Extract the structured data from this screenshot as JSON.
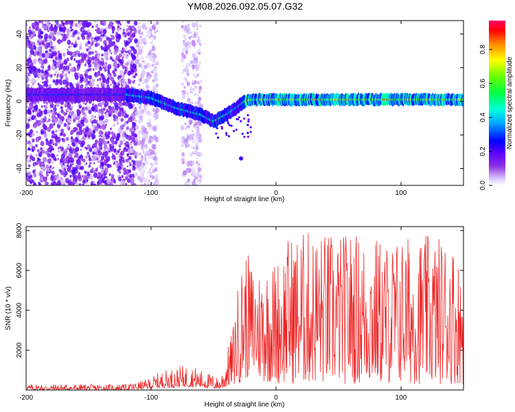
{
  "title": "YM08.2026.092.05.07.G32",
  "chart_data": [
    {
      "type": "heatmap",
      "description_label": "spectrogram",
      "xlabel": "Height of straight line (km)",
      "ylabel": "Frequency (Hz)",
      "xlim": [
        -200,
        150
      ],
      "ylim": [
        -50,
        48
      ],
      "xticks": [
        -200,
        -100,
        0,
        100
      ],
      "yticks": [
        -40,
        -20,
        0,
        20,
        40
      ],
      "colorbar": {
        "label": "Normalized spectral amplitude",
        "range": [
          0,
          0.97
        ],
        "ticks": [
          0,
          0.2,
          0.4,
          0.6,
          0.8
        ]
      },
      "ridge": {
        "x": [
          -200,
          -150,
          -120,
          -100,
          -80,
          -60,
          -50,
          -40,
          -30,
          -25,
          -20,
          0,
          50,
          100,
          150
        ],
        "y": [
          4,
          4,
          4,
          2,
          -4,
          -8,
          -12,
          -8,
          -3,
          0,
          1,
          1,
          1,
          1,
          1
        ]
      }
    },
    {
      "type": "line",
      "xlabel": "Height of straight line (km)",
      "ylabel": "SNR (10 * v/v)",
      "xlim": [
        -200,
        150
      ],
      "ylim": [
        0,
        8200
      ],
      "xticks": [
        -200,
        -100,
        0,
        100
      ],
      "yticks": [
        2000,
        4000,
        6000,
        8000
      ],
      "color": "#ee2222",
      "envelope": {
        "x": [
          -200,
          -120,
          -105,
          -90,
          -70,
          -55,
          -45,
          -35,
          -30,
          -25,
          -20,
          -15,
          -10,
          0,
          10,
          20,
          30,
          40,
          50,
          60,
          70,
          80,
          90,
          100,
          110,
          120,
          130,
          140,
          150
        ],
        "low": [
          0,
          0,
          50,
          100,
          150,
          100,
          50,
          200,
          300,
          500,
          700,
          500,
          400,
          300,
          300,
          300,
          300,
          300,
          300,
          300,
          300,
          300,
          300,
          300,
          300,
          300,
          300,
          300,
          300
        ],
        "high": [
          300,
          300,
          500,
          1000,
          1300,
          900,
          600,
          3000,
          5500,
          7200,
          6500,
          6200,
          6400,
          6600,
          7800,
          8000,
          8100,
          8000,
          7800,
          8000,
          7800,
          7800,
          7500,
          7800,
          7800,
          7800,
          7800,
          7800,
          6000
        ]
      }
    }
  ]
}
